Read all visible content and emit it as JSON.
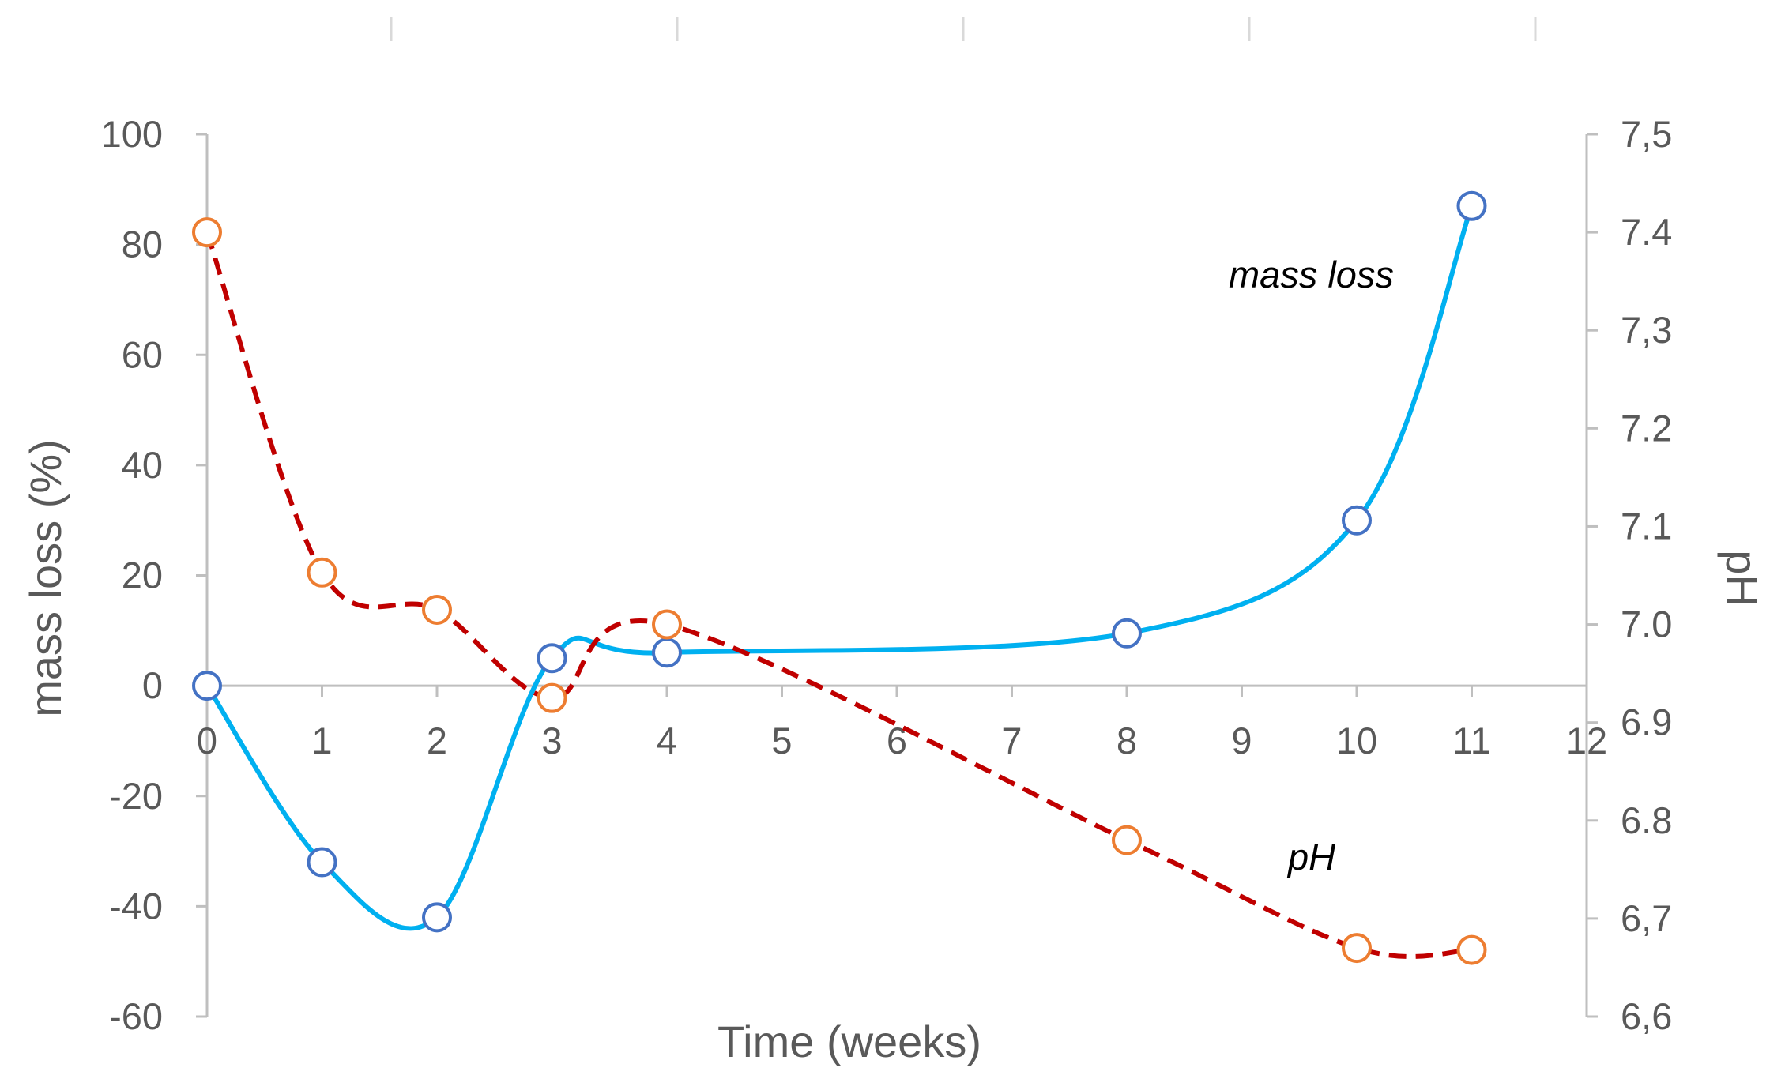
{
  "chart_data": {
    "type": "line",
    "title": "",
    "xlabel": "Time (weeks)",
    "ylabel": "mass loss (%)",
    "y2label": "pH",
    "xlim": [
      0,
      12
    ],
    "ylim": [
      -60,
      100
    ],
    "y2lim": [
      6.6,
      7.5
    ],
    "x_ticks": [
      "0",
      "1",
      "2",
      "3",
      "4",
      "5",
      "6",
      "7",
      "8",
      "9",
      "10",
      "11",
      "12"
    ],
    "y_ticks": [
      "100",
      "80",
      "60",
      "40",
      "20",
      "0",
      "-20",
      "-40",
      "-60"
    ],
    "y2_ticks": [
      "7,5",
      "7.4",
      "7,3",
      "7.2",
      "7.1",
      "7.0",
      "6.9",
      "6.8",
      "6,7",
      "6,6"
    ],
    "series": [
      {
        "name": "mass loss",
        "axis": "left",
        "color": "#00b0f0",
        "marker_color": "#4472c4",
        "line_style": "solid-smooth",
        "x": [
          0,
          1,
          2,
          3,
          4,
          8,
          10,
          11
        ],
        "values": [
          0,
          -32,
          -42,
          5,
          6,
          9.5,
          30,
          87
        ]
      },
      {
        "name": "pH",
        "axis": "right",
        "color": "#c00000",
        "marker_color": "#ed7d31",
        "line_style": "dashed-smooth",
        "x": [
          0,
          1,
          2,
          3,
          4,
          8,
          10,
          11
        ],
        "values": [
          7.4,
          7.053,
          7.015,
          6.925,
          7.0,
          6.78,
          6.67,
          6.668
        ]
      }
    ],
    "annotations": [
      {
        "text": "mass loss",
        "series": "mass loss"
      },
      {
        "text": "pH",
        "series": "pH"
      }
    ],
    "colors": {
      "axis": "#bfbfbf",
      "text": "#595959"
    }
  }
}
